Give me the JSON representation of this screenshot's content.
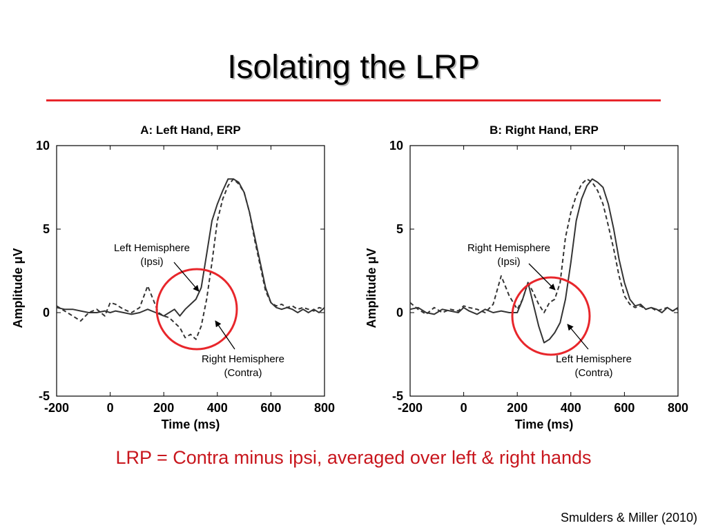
{
  "slide": {
    "title": "Isolating the LRP",
    "caption": "LRP = Contra minus ipsi, averaged over left & right hands",
    "citation": "Smulders & Miller (2010)"
  },
  "colors": {
    "accent_red": "#e8262b",
    "caption_red": "#c8161d",
    "trace": "#333333"
  },
  "chart_data": [
    {
      "type": "line",
      "title": "A: Left Hand, ERP",
      "xlabel": "Time (ms)",
      "ylabel": "Amplitude μV",
      "xlim": [
        -200,
        800
      ],
      "ylim": [
        -5,
        10
      ],
      "xticks": [
        -200,
        0,
        200,
        400,
        600,
        800
      ],
      "yticks": [
        -5,
        0,
        5,
        10
      ],
      "series": [
        {
          "style": "solid",
          "x": [
            -200,
            -170,
            -140,
            -110,
            -80,
            -50,
            -20,
            0,
            20,
            50,
            80,
            110,
            140,
            170,
            200,
            220,
            240,
            260,
            280,
            300,
            320,
            340,
            360,
            380,
            400,
            420,
            440,
            460,
            480,
            500,
            520,
            540,
            560,
            580,
            600,
            620,
            640,
            660,
            680,
            700,
            720,
            740,
            760,
            780,
            800
          ],
          "y": [
            0.3,
            0.2,
            0.2,
            0.1,
            0.0,
            0.0,
            0.1,
            0.0,
            0.1,
            0.0,
            -0.1,
            0.0,
            0.2,
            0.0,
            -0.2,
            0.0,
            0.2,
            -0.2,
            0.2,
            0.5,
            0.8,
            1.5,
            3.5,
            5.5,
            6.5,
            7.3,
            8.0,
            8.0,
            7.8,
            7.2,
            6.0,
            4.5,
            3.0,
            1.5,
            0.6,
            0.3,
            0.2,
            0.3,
            0.2,
            0.0,
            0.2,
            0.0,
            0.2,
            0.0,
            0.3
          ]
        },
        {
          "style": "dashed",
          "x": [
            -200,
            -170,
            -140,
            -110,
            -80,
            -50,
            -20,
            0,
            20,
            50,
            80,
            110,
            140,
            160,
            180,
            200,
            220,
            240,
            260,
            280,
            300,
            320,
            340,
            360,
            380,
            400,
            420,
            440,
            460,
            480,
            500,
            520,
            540,
            560,
            580,
            600,
            620,
            640,
            660,
            680,
            700,
            720,
            740,
            760,
            780,
            800
          ],
          "y": [
            0.4,
            0.1,
            -0.2,
            -0.5,
            0.0,
            0.2,
            -0.2,
            0.6,
            0.5,
            0.2,
            0.0,
            0.3,
            1.6,
            0.8,
            0.0,
            -0.2,
            -0.3,
            -0.6,
            -0.9,
            -1.5,
            -1.3,
            -1.6,
            -0.8,
            0.8,
            3.0,
            5.5,
            6.8,
            7.6,
            8.0,
            7.7,
            7.2,
            6.0,
            4.3,
            2.8,
            1.3,
            0.6,
            0.4,
            0.5,
            0.3,
            0.4,
            0.2,
            0.3,
            0.2,
            0.1,
            0.3,
            0.2
          ]
        }
      ],
      "annotations": [
        {
          "line1": "Left Hemisphere",
          "line2": "(Ipsi)"
        },
        {
          "line1": "Right Hemisphere",
          "line2": "(Contra)"
        }
      ]
    },
    {
      "type": "line",
      "title": "B: Right Hand, ERP",
      "xlabel": "Time (ms)",
      "ylabel": "Amplitude μV",
      "xlim": [
        -200,
        800
      ],
      "ylim": [
        -5,
        10
      ],
      "xticks": [
        -200,
        0,
        200,
        400,
        600,
        800
      ],
      "yticks": [
        -5,
        0,
        5,
        10
      ],
      "series": [
        {
          "style": "solid",
          "x": [
            -200,
            -170,
            -140,
            -110,
            -80,
            -50,
            -20,
            0,
            20,
            50,
            80,
            110,
            140,
            170,
            200,
            220,
            240,
            260,
            280,
            300,
            320,
            340,
            360,
            380,
            400,
            420,
            440,
            460,
            480,
            500,
            520,
            540,
            560,
            580,
            600,
            620,
            640,
            660,
            680,
            700,
            720,
            740,
            760,
            780,
            800
          ],
          "y": [
            0.2,
            0.3,
            0.0,
            -0.1,
            0.2,
            0.1,
            0.0,
            0.3,
            0.1,
            -0.1,
            0.2,
            0.0,
            0.1,
            0.0,
            0.0,
            0.8,
            1.8,
            0.5,
            -0.8,
            -1.8,
            -1.6,
            -1.2,
            -0.6,
            0.8,
            3.0,
            5.5,
            6.8,
            7.6,
            8.0,
            7.8,
            7.5,
            6.5,
            5.0,
            3.2,
            1.8,
            0.8,
            0.4,
            0.5,
            0.2,
            0.3,
            0.2,
            0.0,
            0.3,
            0.1,
            0.3
          ]
        },
        {
          "style": "dashed",
          "x": [
            -200,
            -170,
            -140,
            -110,
            -80,
            -50,
            -20,
            0,
            20,
            50,
            80,
            110,
            140,
            170,
            200,
            220,
            240,
            260,
            280,
            300,
            320,
            340,
            360,
            380,
            400,
            420,
            440,
            460,
            480,
            500,
            520,
            540,
            560,
            580,
            600,
            620,
            640,
            660,
            680,
            700,
            720,
            740,
            760,
            780,
            800
          ],
          "y": [
            0.6,
            0.2,
            -0.1,
            0.3,
            0.0,
            0.2,
            0.1,
            0.4,
            0.3,
            0.2,
            0.0,
            0.5,
            2.2,
            1.0,
            0.2,
            0.8,
            1.8,
            1.2,
            0.5,
            0.0,
            0.6,
            0.8,
            1.8,
            4.5,
            6.0,
            7.0,
            7.7,
            8.0,
            7.8,
            7.3,
            6.5,
            5.2,
            3.8,
            2.2,
            1.0,
            0.5,
            0.3,
            0.4,
            0.2,
            0.3,
            0.1,
            0.2,
            0.3,
            0.1,
            0.2
          ]
        }
      ],
      "annotations": [
        {
          "line1": "Right Hemisphere",
          "line2": "(Ipsi)"
        },
        {
          "line1": "Left Hemisphere",
          "line2": "(Contra)"
        }
      ]
    }
  ]
}
